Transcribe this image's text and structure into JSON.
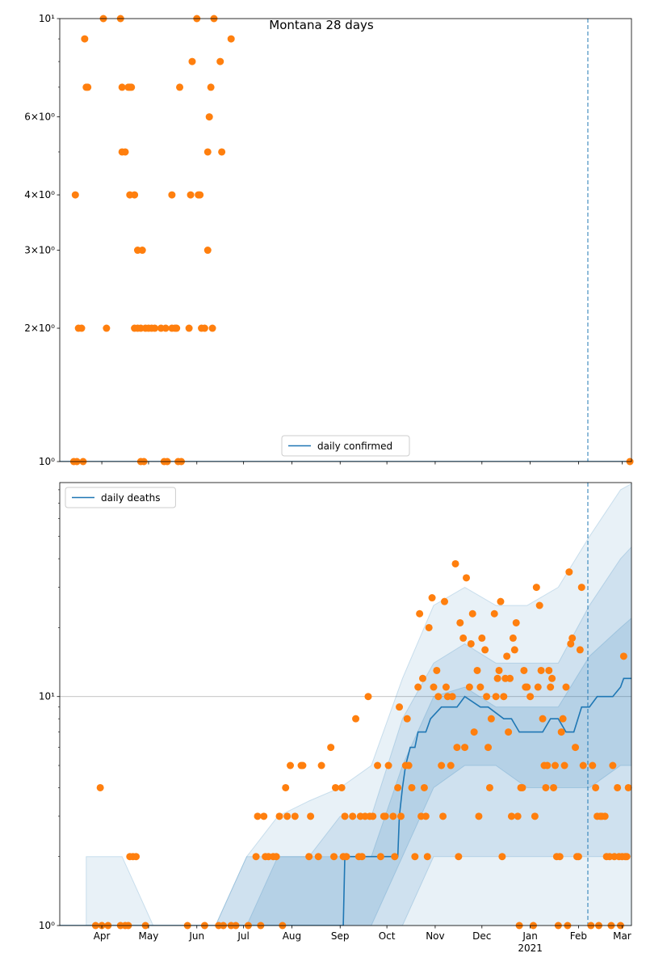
{
  "chart_data": [
    {
      "type": "timeseries",
      "title": "Montana 28 days",
      "xlim": [
        0,
        367
      ],
      "xticks": [
        {
          "value": 27,
          "label": "Apr"
        },
        {
          "value": 57,
          "label": "May"
        },
        {
          "value": 88,
          "label": "Jun"
        },
        {
          "value": 118,
          "label": "Jul"
        },
        {
          "value": 149,
          "label": "Aug"
        },
        {
          "value": 180,
          "label": "Sep"
        },
        {
          "value": 210,
          "label": "Oct"
        },
        {
          "value": 241,
          "label": "Nov"
        },
        {
          "value": 271,
          "label": "Dec"
        },
        {
          "value": 302,
          "label": "Jan"
        },
        {
          "value": 333,
          "label": "Feb"
        },
        {
          "value": 361,
          "label": "Mar"
        }
      ],
      "show_xtick_labels": false,
      "ylim": [
        1,
        10
      ],
      "log_y": true,
      "grid": true,
      "yticks": [
        {
          "value": 1,
          "label": "10⁰"
        },
        {
          "value": 2,
          "label": "2×10⁰"
        },
        {
          "value": 3,
          "label": "3×10⁰"
        },
        {
          "value": 4,
          "label": "4×10⁰"
        },
        {
          "value": 6,
          "label": "6×10⁰"
        },
        {
          "value": 10,
          "label": "10¹"
        }
      ],
      "yminorticks": [
        5,
        7,
        8,
        9
      ],
      "legend": "lower center",
      "series": [
        {
          "name": "daily confirmed",
          "color": "#1f77b4",
          "x": [
            0,
            367
          ],
          "values": [
            1,
            1
          ]
        }
      ],
      "scatter": {
        "color": "#ff7f0e",
        "x": [
          9,
          10,
          11,
          12,
          14,
          15,
          16,
          17,
          18,
          28,
          30,
          39,
          40,
          40,
          42,
          44,
          45,
          45,
          46,
          48,
          48,
          50,
          50,
          52,
          52,
          53,
          54,
          55,
          57,
          59,
          61,
          65,
          67,
          68,
          69,
          72,
          72,
          74,
          75,
          76,
          77,
          78,
          83,
          84,
          85,
          88,
          89,
          90,
          91,
          93,
          95,
          95,
          96,
          97,
          98,
          99,
          103,
          104,
          110,
          366
        ],
        "values": [
          1,
          4,
          1,
          2,
          2,
          1,
          9,
          7,
          7,
          10,
          2,
          10,
          7,
          5,
          5,
          7,
          7,
          4,
          7,
          4,
          2,
          3,
          2,
          2,
          1,
          3,
          1,
          2,
          2,
          2,
          2,
          2,
          1,
          2,
          1,
          4,
          2,
          2,
          2,
          1,
          7,
          1,
          2,
          4,
          8,
          10,
          4,
          4,
          2,
          2,
          5,
          3,
          6,
          7,
          2,
          10,
          8,
          5,
          9,
          1
        ]
      },
      "bands": [],
      "vline": {
        "x": 339,
        "color": "#1f77b4"
      }
    },
    {
      "type": "timeseries",
      "xlim": [
        0,
        367
      ],
      "xticks": [
        {
          "value": 27,
          "label": "Apr"
        },
        {
          "value": 57,
          "label": "May"
        },
        {
          "value": 88,
          "label": "Jun"
        },
        {
          "value": 118,
          "label": "Jul"
        },
        {
          "value": 149,
          "label": "Aug"
        },
        {
          "value": 180,
          "label": "Sep"
        },
        {
          "value": 210,
          "label": "Oct"
        },
        {
          "value": 241,
          "label": "Nov"
        },
        {
          "value": 271,
          "label": "Dec"
        },
        {
          "value": 302,
          "label": "Jan",
          "sublabel": "2021"
        },
        {
          "value": 333,
          "label": "Feb"
        },
        {
          "value": 361,
          "label": "Mar"
        }
      ],
      "show_xtick_labels": true,
      "ylim": [
        1,
        86
      ],
      "log_y": true,
      "grid": true,
      "yticks": [
        {
          "value": 1,
          "label": "10⁰"
        },
        {
          "value": 10,
          "label": "10¹"
        }
      ],
      "yminorticks": [
        2,
        3,
        4,
        5,
        6,
        7,
        8,
        9,
        20,
        30,
        40,
        50,
        60,
        70,
        80
      ],
      "legend": "upper left",
      "series": [
        {
          "name": "daily deaths",
          "color": "#1f77b4",
          "x": [
            0,
            182,
            183,
            217,
            218,
            220,
            222,
            225,
            228,
            230,
            235,
            238,
            245,
            250,
            255,
            260,
            270,
            275,
            285,
            290,
            295,
            300,
            310,
            315,
            320,
            325,
            330,
            335,
            340,
            345,
            350,
            355,
            360,
            362,
            367
          ],
          "values": [
            1,
            1,
            2,
            2,
            3,
            4,
            5,
            6,
            6,
            7,
            7,
            8,
            9,
            9,
            9,
            10,
            9,
            9,
            8,
            8,
            7,
            7,
            7,
            8,
            8,
            7,
            7,
            9,
            9,
            10,
            10,
            10,
            11,
            12,
            12
          ]
        }
      ],
      "scatter": {
        "color": "#ff7f0e",
        "x": [
          23,
          26,
          27,
          31,
          39,
          42,
          44,
          45,
          47,
          49,
          55,
          82,
          93,
          102,
          105,
          110,
          113,
          121,
          126,
          127,
          129,
          131,
          132,
          134,
          137,
          139,
          141,
          143,
          145,
          146,
          148,
          151,
          155,
          156,
          160,
          161,
          166,
          168,
          174,
          176,
          177,
          181,
          182,
          183,
          184,
          188,
          190,
          192,
          193,
          194,
          196,
          198,
          199,
          201,
          204,
          206,
          208,
          209,
          211,
          214,
          215,
          217,
          218,
          219,
          222,
          223,
          224,
          226,
          228,
          230,
          231,
          232,
          233,
          234,
          235,
          236,
          237,
          239,
          240,
          242,
          243,
          245,
          246,
          247,
          248,
          249,
          251,
          252,
          254,
          255,
          256,
          257,
          259,
          260,
          261,
          263,
          264,
          265,
          266,
          268,
          269,
          270,
          271,
          273,
          274,
          275,
          276,
          277,
          279,
          280,
          281,
          282,
          283,
          284,
          285,
          286,
          287,
          288,
          289,
          290,
          291,
          292,
          293,
          294,
          295,
          296,
          297,
          298,
          299,
          300,
          302,
          304,
          305,
          306,
          307,
          308,
          309,
          310,
          311,
          312,
          313,
          314,
          315,
          316,
          317,
          318,
          319,
          320,
          321,
          322,
          323,
          324,
          325,
          326,
          327,
          328,
          329,
          331,
          332,
          333,
          334,
          335,
          336,
          341,
          342,
          344,
          345,
          346,
          347,
          348,
          350,
          351,
          353,
          354,
          355,
          356,
          358,
          359,
          360,
          361,
          362,
          363,
          364,
          365
        ],
        "values": [
          1,
          4,
          1,
          1,
          1,
          1,
          1,
          2,
          2,
          2,
          1,
          1,
          1,
          1,
          1,
          1,
          1,
          1,
          2,
          3,
          1,
          3,
          2,
          2,
          2,
          2,
          3,
          1,
          4,
          3,
          5,
          3,
          5,
          5,
          2,
          3,
          2,
          5,
          6,
          2,
          4,
          4,
          2,
          3,
          2,
          3,
          8,
          2,
          3,
          2,
          3,
          10,
          3,
          3,
          5,
          2,
          3,
          3,
          5,
          3,
          2,
          4,
          9,
          3,
          5,
          8,
          5,
          4,
          2,
          11,
          23,
          3,
          12,
          4,
          3,
          2,
          20,
          27,
          11,
          13,
          10,
          5,
          3,
          26,
          11,
          10,
          5,
          10,
          38,
          6,
          2,
          21,
          18,
          6,
          33,
          11,
          17,
          23,
          7,
          13,
          3,
          11,
          18,
          16,
          10,
          6,
          4,
          8,
          23,
          10,
          12,
          13,
          26,
          2,
          10,
          12,
          15,
          7,
          12,
          3,
          18,
          16,
          21,
          3,
          1,
          4,
          4,
          13,
          11,
          11,
          10,
          1,
          3,
          30,
          11,
          25,
          13,
          8,
          5,
          4,
          5,
          13,
          11,
          12,
          4,
          5,
          2,
          1,
          2,
          7,
          8,
          5,
          11,
          1,
          35,
          17,
          18,
          6,
          2,
          2,
          16,
          30,
          5,
          1,
          5,
          4,
          3,
          1,
          3,
          3,
          3,
          2,
          2,
          1,
          5,
          2,
          4,
          2,
          1,
          2,
          15,
          2,
          2,
          4
        ]
      },
      "bands": [
        {
          "color": "#1f77b4",
          "opacity": 0.1,
          "x": [
            17,
            40,
            60,
            80,
            100,
            120,
            140,
            160,
            180,
            200,
            220,
            240,
            260,
            280,
            300,
            320,
            340,
            360,
            367
          ],
          "lower": [
            1,
            1,
            1,
            1,
            1,
            1,
            1,
            1,
            1,
            1,
            1,
            1,
            1,
            1,
            1,
            1,
            1,
            1,
            1
          ],
          "upper": [
            2,
            2,
            1,
            1,
            1,
            2,
            3,
            3.5,
            4,
            5,
            12,
            25,
            30,
            25,
            25,
            30,
            50,
            80,
            85
          ]
        },
        {
          "color": "#1f77b4",
          "opacity": 0.12,
          "x": [
            17,
            40,
            60,
            80,
            100,
            120,
            140,
            160,
            180,
            200,
            220,
            240,
            260,
            280,
            300,
            320,
            340,
            360,
            367
          ],
          "lower": [
            1,
            1,
            1,
            1,
            1,
            1,
            1,
            1,
            1,
            1,
            1,
            2,
            2,
            2,
            2,
            2,
            2,
            2,
            2
          ],
          "upper": [
            1,
            1,
            1,
            1,
            1,
            2,
            2,
            2,
            3,
            3,
            8,
            14,
            17,
            14,
            14,
            14,
            25,
            40,
            45
          ]
        },
        {
          "color": "#1f77b4",
          "opacity": 0.15,
          "x": [
            17,
            40,
            60,
            80,
            100,
            120,
            140,
            160,
            180,
            200,
            220,
            240,
            260,
            280,
            300,
            320,
            340,
            360,
            367
          ],
          "lower": [
            1,
            1,
            1,
            1,
            1,
            1,
            1,
            1,
            1,
            1,
            2,
            4,
            5,
            5,
            4,
            4,
            4,
            5,
            5
          ],
          "upper": [
            1,
            1,
            1,
            1,
            1,
            1,
            2,
            2,
            2,
            2,
            5,
            10,
            11,
            9,
            9,
            9,
            15,
            20,
            22
          ]
        }
      ],
      "vline": {
        "x": 339,
        "color": "#1f77b4"
      }
    }
  ]
}
